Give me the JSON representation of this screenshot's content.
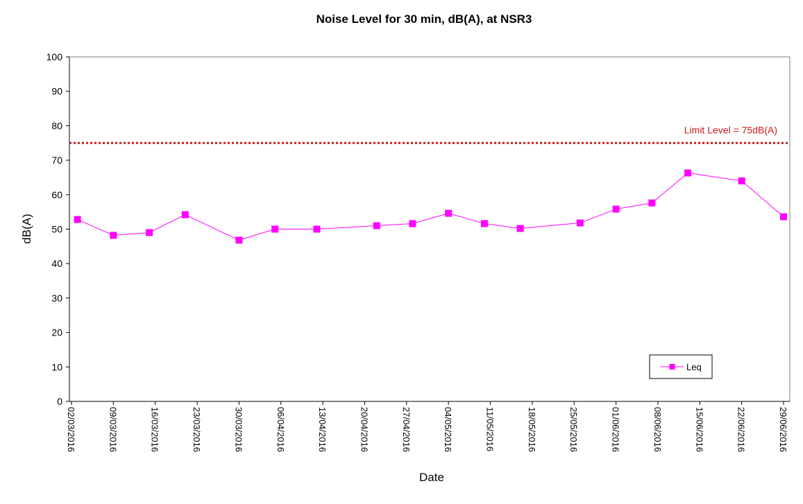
{
  "chart_data": {
    "type": "line",
    "title": "Noise Level for 30 min, dB(A), at NSR3",
    "xlabel": "Date",
    "ylabel": "dB(A)",
    "ylim": [
      0,
      100
    ],
    "yticks": [
      "0",
      "10",
      "20",
      "30",
      "40",
      "50",
      "60",
      "70",
      "80",
      "90",
      "100"
    ],
    "xlim": [
      "02/03/2016",
      "29/06/2016"
    ],
    "xticks": [
      "02/03/2016",
      "09/03/2016",
      "16/03/2016",
      "23/03/2016",
      "30/03/2016",
      "06/04/2016",
      "13/04/2016",
      "20/04/2016",
      "27/04/2016",
      "04/05/2016",
      "11/05/2016",
      "18/05/2016",
      "25/05/2016",
      "01/06/2016",
      "08/06/2016",
      "15/06/2016",
      "22/06/2016",
      "29/06/2016"
    ],
    "grid": false,
    "legend_position": "bottom-right",
    "series": [
      {
        "name": "Leq",
        "color": "#ff00ff",
        "marker": "square",
        "points": [
          {
            "x": "03/03/2016",
            "y": 52.8
          },
          {
            "x": "09/03/2016",
            "y": 48.2
          },
          {
            "x": "15/03/2016",
            "y": 49.0
          },
          {
            "x": "21/03/2016",
            "y": 54.2
          },
          {
            "x": "30/03/2016",
            "y": 46.8
          },
          {
            "x": "05/04/2016",
            "y": 50.0
          },
          {
            "x": "12/04/2016",
            "y": 50.0
          },
          {
            "x": "22/04/2016",
            "y": 51.0
          },
          {
            "x": "28/04/2016",
            "y": 51.6
          },
          {
            "x": "04/05/2016",
            "y": 54.6
          },
          {
            "x": "10/05/2016",
            "y": 51.6
          },
          {
            "x": "16/05/2016",
            "y": 50.2
          },
          {
            "x": "26/05/2016",
            "y": 51.8
          },
          {
            "x": "01/06/2016",
            "y": 55.8
          },
          {
            "x": "07/06/2016",
            "y": 57.6
          },
          {
            "x": "13/06/2016",
            "y": 66.3
          },
          {
            "x": "22/06/2016",
            "y": 64.0
          },
          {
            "x": "29/06/2016",
            "y": 53.6
          }
        ]
      }
    ],
    "limit_line": {
      "value": 75,
      "label": "Limit Level = 75dB(A)",
      "color": "#cc1a1a",
      "style": "dotted"
    }
  }
}
